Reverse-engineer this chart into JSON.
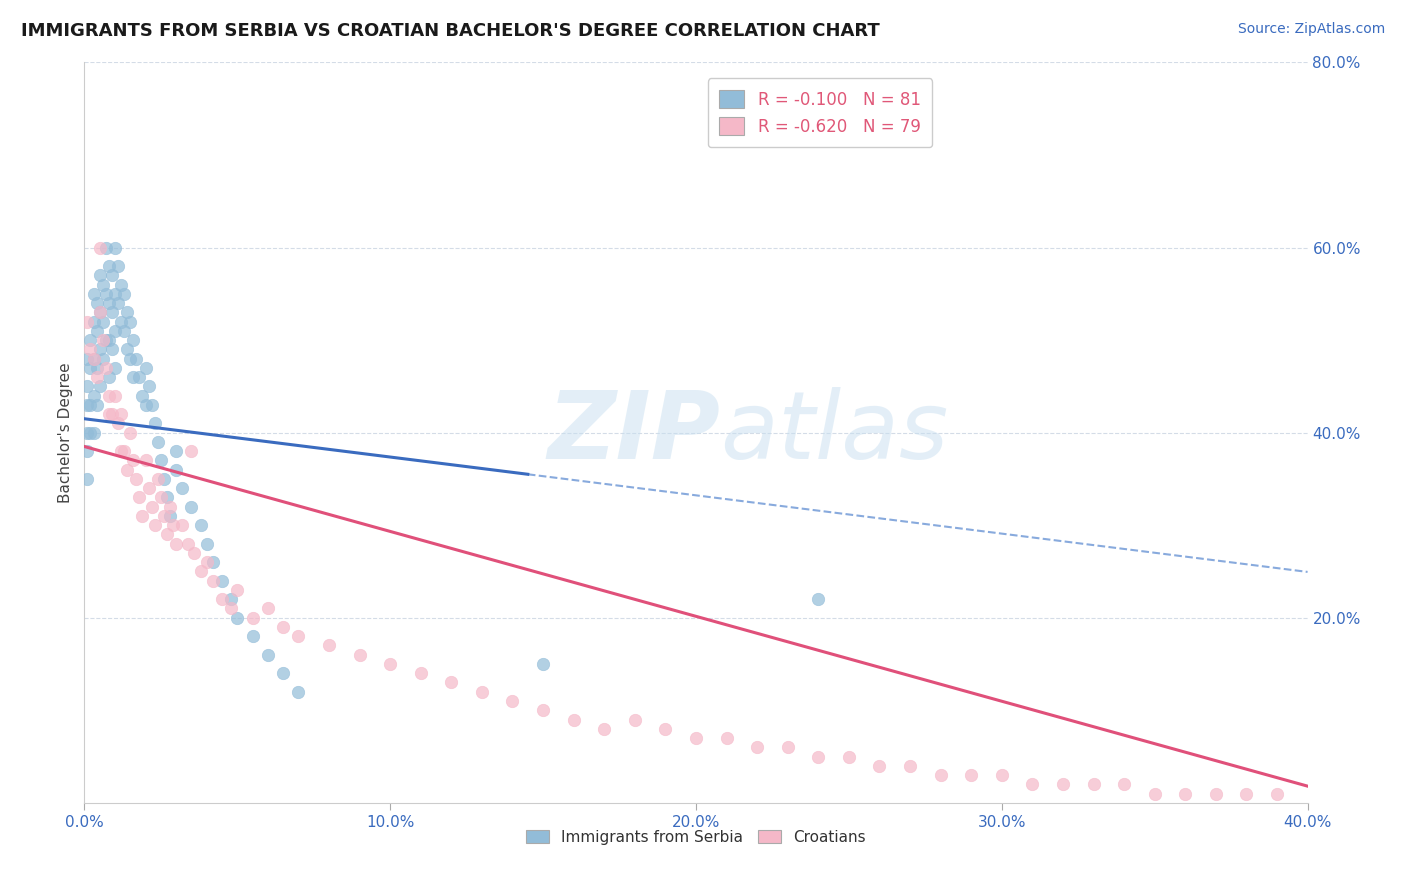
{
  "title": "IMMIGRANTS FROM SERBIA VS CROATIAN BACHELOR'S DEGREE CORRELATION CHART",
  "source_text": "Source: ZipAtlas.com",
  "ylabel": "Bachelor's Degree",
  "xlim": [
    0.0,
    0.4
  ],
  "ylim": [
    0.0,
    0.8
  ],
  "xtick_labels": [
    "0.0%",
    "10.0%",
    "20.0%",
    "30.0%",
    "40.0%"
  ],
  "xtick_vals": [
    0.0,
    0.1,
    0.2,
    0.3,
    0.4
  ],
  "ytick_right_labels": [
    "20.0%",
    "40.0%",
    "60.0%",
    "80.0%"
  ],
  "ytick_right_vals": [
    0.2,
    0.4,
    0.6,
    0.8
  ],
  "blue_color": "#92bcd8",
  "blue_line_color": "#3a6bbf",
  "pink_color": "#f5b8c8",
  "pink_line_color": "#e0507a",
  "dashed_line_color": "#88aadd",
  "R_blue": -0.1,
  "N_blue": 81,
  "R_pink": -0.62,
  "N_pink": 79,
  "legend_text_color": "#e05878",
  "legend_N_color": "#4472c4",
  "watermark_color": "#c8dff0",
  "blue_trend_x0": 0.0,
  "blue_trend_y0": 0.415,
  "blue_trend_x1": 0.145,
  "blue_trend_y1": 0.355,
  "blue_trend_solid_end": 0.145,
  "blue_trend_dash_end": 0.4,
  "pink_trend_x0": 0.0,
  "pink_trend_y0": 0.385,
  "pink_trend_x1": 0.4,
  "pink_trend_y1": 0.018,
  "blue_scatter_x": [
    0.001,
    0.001,
    0.001,
    0.001,
    0.001,
    0.001,
    0.002,
    0.002,
    0.002,
    0.002,
    0.003,
    0.003,
    0.003,
    0.003,
    0.003,
    0.004,
    0.004,
    0.004,
    0.004,
    0.005,
    0.005,
    0.005,
    0.005,
    0.006,
    0.006,
    0.006,
    0.007,
    0.007,
    0.007,
    0.008,
    0.008,
    0.008,
    0.008,
    0.009,
    0.009,
    0.009,
    0.01,
    0.01,
    0.01,
    0.01,
    0.011,
    0.011,
    0.012,
    0.012,
    0.013,
    0.013,
    0.014,
    0.014,
    0.015,
    0.015,
    0.016,
    0.016,
    0.017,
    0.018,
    0.019,
    0.02,
    0.02,
    0.021,
    0.022,
    0.023,
    0.024,
    0.025,
    0.026,
    0.027,
    0.028,
    0.03,
    0.03,
    0.032,
    0.035,
    0.038,
    0.04,
    0.042,
    0.045,
    0.048,
    0.05,
    0.055,
    0.06,
    0.065,
    0.07,
    0.15,
    0.24
  ],
  "blue_scatter_y": [
    0.48,
    0.45,
    0.43,
    0.4,
    0.38,
    0.35,
    0.5,
    0.47,
    0.43,
    0.4,
    0.55,
    0.52,
    0.48,
    0.44,
    0.4,
    0.54,
    0.51,
    0.47,
    0.43,
    0.57,
    0.53,
    0.49,
    0.45,
    0.56,
    0.52,
    0.48,
    0.6,
    0.55,
    0.5,
    0.58,
    0.54,
    0.5,
    0.46,
    0.57,
    0.53,
    0.49,
    0.6,
    0.55,
    0.51,
    0.47,
    0.58,
    0.54,
    0.56,
    0.52,
    0.55,
    0.51,
    0.53,
    0.49,
    0.52,
    0.48,
    0.5,
    0.46,
    0.48,
    0.46,
    0.44,
    0.47,
    0.43,
    0.45,
    0.43,
    0.41,
    0.39,
    0.37,
    0.35,
    0.33,
    0.31,
    0.38,
    0.36,
    0.34,
    0.32,
    0.3,
    0.28,
    0.26,
    0.24,
    0.22,
    0.2,
    0.18,
    0.16,
    0.14,
    0.12,
    0.15,
    0.22
  ],
  "pink_scatter_x": [
    0.001,
    0.002,
    0.003,
    0.004,
    0.005,
    0.006,
    0.007,
    0.008,
    0.009,
    0.01,
    0.011,
    0.012,
    0.013,
    0.014,
    0.015,
    0.016,
    0.017,
    0.018,
    0.019,
    0.02,
    0.021,
    0.022,
    0.023,
    0.024,
    0.025,
    0.026,
    0.027,
    0.028,
    0.029,
    0.03,
    0.032,
    0.034,
    0.036,
    0.038,
    0.04,
    0.042,
    0.045,
    0.048,
    0.05,
    0.055,
    0.06,
    0.065,
    0.07,
    0.08,
    0.09,
    0.1,
    0.11,
    0.12,
    0.13,
    0.14,
    0.15,
    0.16,
    0.17,
    0.18,
    0.19,
    0.2,
    0.21,
    0.22,
    0.23,
    0.24,
    0.25,
    0.26,
    0.27,
    0.28,
    0.29,
    0.3,
    0.31,
    0.32,
    0.33,
    0.34,
    0.35,
    0.36,
    0.37,
    0.38,
    0.39,
    0.005,
    0.008,
    0.012,
    0.035
  ],
  "pink_scatter_y": [
    0.52,
    0.49,
    0.48,
    0.46,
    0.53,
    0.5,
    0.47,
    0.44,
    0.42,
    0.44,
    0.41,
    0.42,
    0.38,
    0.36,
    0.4,
    0.37,
    0.35,
    0.33,
    0.31,
    0.37,
    0.34,
    0.32,
    0.3,
    0.35,
    0.33,
    0.31,
    0.29,
    0.32,
    0.3,
    0.28,
    0.3,
    0.28,
    0.27,
    0.25,
    0.26,
    0.24,
    0.22,
    0.21,
    0.23,
    0.2,
    0.21,
    0.19,
    0.18,
    0.17,
    0.16,
    0.15,
    0.14,
    0.13,
    0.12,
    0.11,
    0.1,
    0.09,
    0.08,
    0.09,
    0.08,
    0.07,
    0.07,
    0.06,
    0.06,
    0.05,
    0.05,
    0.04,
    0.04,
    0.03,
    0.03,
    0.03,
    0.02,
    0.02,
    0.02,
    0.02,
    0.01,
    0.01,
    0.01,
    0.01,
    0.01,
    0.6,
    0.42,
    0.38,
    0.38
  ]
}
